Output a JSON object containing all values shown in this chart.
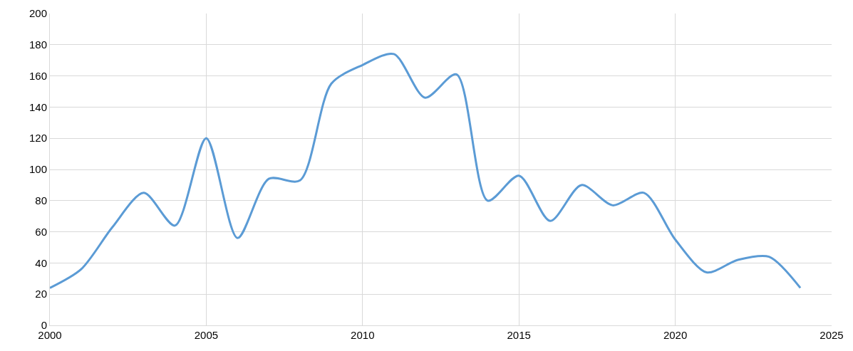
{
  "chart_data": {
    "type": "line",
    "x": [
      2000,
      2001,
      2002,
      2003,
      2004,
      2005,
      2006,
      2007,
      2008,
      2009,
      2010,
      2011,
      2012,
      2013,
      2014,
      2015,
      2016,
      2017,
      2018,
      2019,
      2020,
      2021,
      2022,
      2023,
      2024
    ],
    "series": [
      {
        "color": "#5b9bd5",
        "values": [
          24,
          36,
          63,
          85,
          64,
          120,
          56,
          94,
          93,
          155,
          167,
          174,
          146,
          161,
          80,
          96,
          67,
          90,
          77,
          85,
          55,
          34,
          42,
          44,
          24
        ]
      }
    ],
    "xlim": [
      2000,
      2025
    ],
    "xticks": [
      2000,
      2005,
      2010,
      2015,
      2020,
      2025
    ],
    "ylim": [
      0,
      200
    ],
    "yticks": [
      0,
      20,
      40,
      60,
      80,
      100,
      120,
      140,
      160,
      180,
      200
    ],
    "grid": true,
    "marker": "none",
    "line_style": "solid"
  }
}
